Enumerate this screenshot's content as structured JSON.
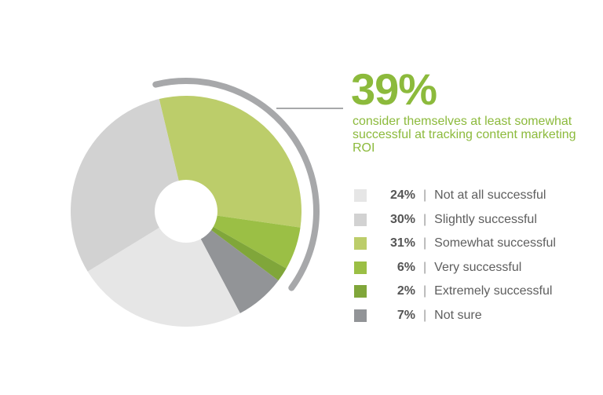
{
  "chart_data": {
    "type": "pie",
    "donut": true,
    "headline": {
      "value": "39%",
      "text": "consider themselves at least somewhat successful at tracking content marketing ROI"
    },
    "slices": [
      {
        "label": "Somewhat successful",
        "pct_label": "31%",
        "value": 31,
        "color": "#bccd6a"
      },
      {
        "label": "Very successful",
        "pct_label": "6%",
        "value": 6,
        "color": "#9bbf45"
      },
      {
        "label": "Extremely successful",
        "pct_label": "2%",
        "value": 2,
        "color": "#80a63a"
      },
      {
        "label": "Not sure",
        "pct_label": "7%",
        "value": 7,
        "color": "#929497"
      },
      {
        "label": "Not at all successful",
        "pct_label": "24%",
        "value": 24,
        "color": "#e6e6e6"
      },
      {
        "label": "Slightly successful",
        "pct_label": "30%",
        "value": 30,
        "color": "#d2d2d2"
      }
    ],
    "legend": [
      {
        "pct": "24%",
        "label": "Not at all successful",
        "color": "#e6e6e6"
      },
      {
        "pct": "30%",
        "label": "Slightly successful",
        "color": "#d2d2d2"
      },
      {
        "pct": "31%",
        "label": "Somewhat successful",
        "color": "#bccd6a"
      },
      {
        "pct": "6%",
        "label": "Very successful",
        "color": "#9bbf45"
      },
      {
        "pct": "2%",
        "label": "Extremely successful",
        "color": "#80a63a"
      },
      {
        "pct": "7%",
        "label": "Not sure",
        "color": "#929497"
      }
    ],
    "legend_placement": "right"
  }
}
